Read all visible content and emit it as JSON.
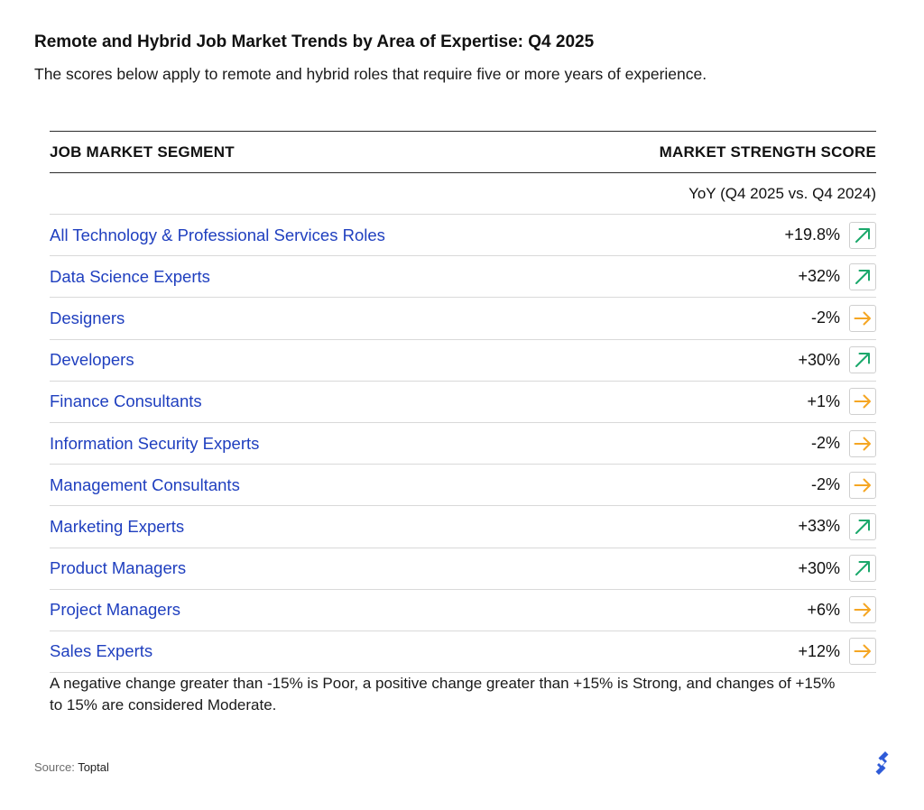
{
  "header": {
    "title": "Remote and Hybrid Job Market Trends by Area of Expertise: Q4 2025",
    "subtitle": "The scores below apply to remote and hybrid roles that require five or more years of experience."
  },
  "table": {
    "col_segment": "JOB MARKET SEGMENT",
    "col_score": "MARKET STRENGTH SCORE",
    "subheader": "YoY (Q4 2025 vs. Q4 2024)"
  },
  "colors": {
    "segment_text": "#1f3fbf",
    "strong_arrow": "#1aa86b",
    "moderate_arrow": "#f5a623"
  },
  "chart_data": {
    "type": "table",
    "title": "Remote and Hybrid Job Market Trends by Area of Expertise: Q4 2025",
    "columns": [
      "JOB MARKET SEGMENT",
      "MARKET STRENGTH SCORE"
    ],
    "rows": [
      {
        "segment": "All Technology & Professional Services Roles",
        "score": "+19.8%",
        "trend": "up-right-arrow-icon",
        "rating": "strong"
      },
      {
        "segment": "Data Science Experts",
        "score": "+32%",
        "trend": "up-right-arrow-icon",
        "rating": "strong"
      },
      {
        "segment": "Designers",
        "score": "-2%",
        "trend": "right-arrow-icon",
        "rating": "moderate"
      },
      {
        "segment": "Developers",
        "score": "+30%",
        "trend": "up-right-arrow-icon",
        "rating": "strong"
      },
      {
        "segment": "Finance Consultants",
        "score": "+1%",
        "trend": "right-arrow-icon",
        "rating": "moderate"
      },
      {
        "segment": "Information Security Experts",
        "score": "-2%",
        "trend": "right-arrow-icon",
        "rating": "moderate"
      },
      {
        "segment": "Management Consultants",
        "score": "-2%",
        "trend": "right-arrow-icon",
        "rating": "moderate"
      },
      {
        "segment": "Marketing Experts",
        "score": "+33%",
        "trend": "up-right-arrow-icon",
        "rating": "strong"
      },
      {
        "segment": "Product Managers",
        "score": "+30%",
        "trend": "up-right-arrow-icon",
        "rating": "strong"
      },
      {
        "segment": "Project Managers",
        "score": "+6%",
        "trend": "right-arrow-icon",
        "rating": "moderate"
      },
      {
        "segment": "Sales Experts",
        "score": "+12%",
        "trend": "right-arrow-icon",
        "rating": "moderate"
      }
    ]
  },
  "footnote": "A negative change greater than -15% is Poor, a positive change greater than +15% is Strong, and changes of +15% to 15% are considered Moderate.",
  "source": {
    "label": "Source:",
    "value": "Toptal"
  },
  "logo_icon": "toptal-logo-icon"
}
